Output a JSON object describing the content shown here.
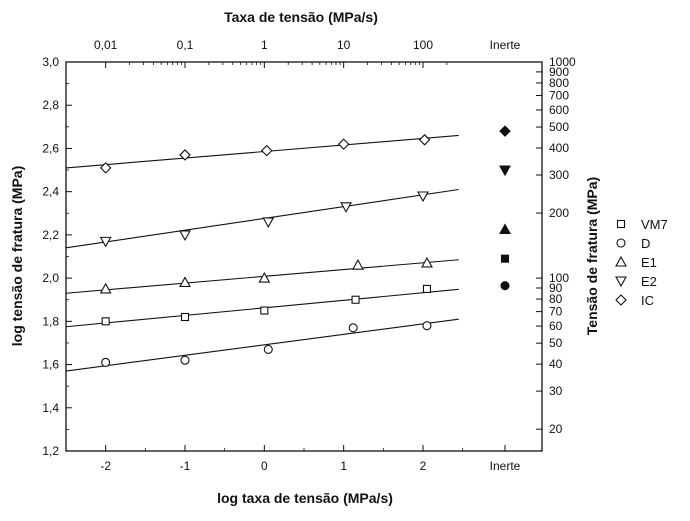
{
  "chart_data": {
    "type": "scatter",
    "title": "",
    "xlabel": "log taxa de tensão (MPa/s)",
    "ylabel": "log tensão de fratura (MPa)",
    "top_xlabel": "Taxa de tensão (MPa/s)",
    "right_ylabel": "Tensão de fratura (MPa)",
    "xlim": [
      -2.5,
      3.5
    ],
    "ylim": [
      1.2,
      3.0
    ],
    "x_ticks": [
      -2,
      -1,
      0,
      1,
      2
    ],
    "x_tick_labels": [
      "-2",
      "-1",
      "0",
      "1",
      "2"
    ],
    "x_extra_label": "Inerte",
    "top_tick_labels": [
      "0,01",
      "0,1",
      "1",
      "10",
      "100"
    ],
    "top_extra_label": "Inerte",
    "y_ticks": [
      1.2,
      1.4,
      1.6,
      1.8,
      2.0,
      2.2,
      2.4,
      2.6,
      2.8,
      3.0
    ],
    "y_tick_labels": [
      "1,2",
      "1,4",
      "1,6",
      "1,8",
      "2,0",
      "2,2",
      "2,4",
      "2,6",
      "2,8",
      "3,0"
    ],
    "right_ticks": [
      20,
      30,
      40,
      50,
      60,
      70,
      80,
      90,
      100,
      200,
      300,
      400,
      500,
      600,
      700,
      800,
      900,
      1000
    ],
    "right_tick_labels": [
      "20",
      "30",
      "40",
      "50",
      "60",
      "70",
      "80",
      "90",
      "100",
      "200",
      "300",
      "400",
      "500",
      "600",
      "700",
      "800",
      "900",
      "1000"
    ],
    "grid": false,
    "legend_position": "right",
    "series": [
      {
        "name": "VM7",
        "marker": "square",
        "x": [
          -2,
          -1,
          0,
          1.15,
          2.05
        ],
        "y": [
          1.8,
          1.82,
          1.85,
          1.9,
          1.95
        ],
        "fit": [
          [
            -2.5,
            1.775
          ],
          [
            2.45,
            1.948
          ]
        ],
        "inerte": 2.09,
        "inerte_marker": "square"
      },
      {
        "name": "D",
        "marker": "circle",
        "x": [
          -2,
          -1,
          0.05,
          1.12,
          2.05
        ],
        "y": [
          1.61,
          1.62,
          1.67,
          1.77,
          1.78
        ],
        "fit": [
          [
            -2.5,
            1.57
          ],
          [
            2.45,
            1.81
          ]
        ],
        "inerte": 1.965,
        "inerte_marker": "circle"
      },
      {
        "name": "E1",
        "marker": "triangle-up",
        "x": [
          -2,
          -1,
          0,
          1.18,
          2.05
        ],
        "y": [
          1.95,
          1.98,
          2.0,
          2.06,
          2.07
        ],
        "fit": [
          [
            -2.5,
            1.93
          ],
          [
            2.45,
            2.085
          ]
        ],
        "inerte": 2.225,
        "inerte_marker": "triangle-up"
      },
      {
        "name": "E2",
        "marker": "triangle-down",
        "x": [
          -2,
          -1,
          0.05,
          1.03,
          2.0
        ],
        "y": [
          2.17,
          2.2,
          2.26,
          2.33,
          2.38
        ],
        "fit": [
          [
            -2.5,
            2.14
          ],
          [
            2.45,
            2.41
          ]
        ],
        "inerte": 2.5,
        "inerte_marker": "triangle-down"
      },
      {
        "name": "IC",
        "marker": "diamond",
        "x": [
          -2,
          -1,
          0.03,
          1.0,
          2.02
        ],
        "y": [
          2.51,
          2.57,
          2.59,
          2.62,
          2.64
        ],
        "fit": [
          [
            -2.5,
            2.51
          ],
          [
            2.45,
            2.66
          ]
        ],
        "inerte": 2.68,
        "inerte_marker": "diamond"
      }
    ]
  }
}
